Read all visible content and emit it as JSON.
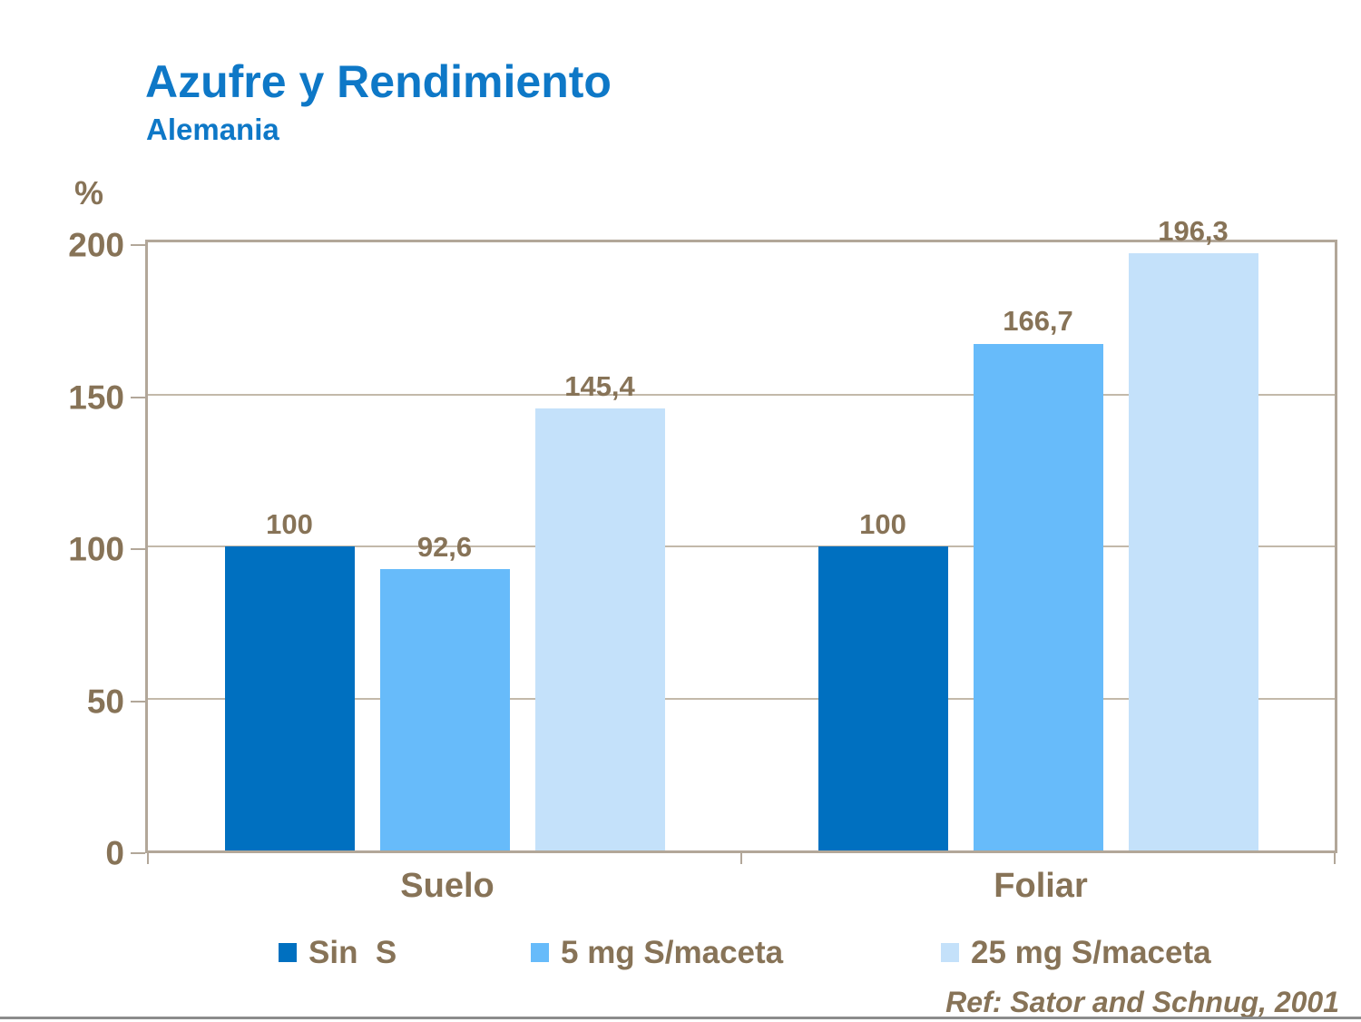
{
  "slide": {
    "title": "Azufre y Rendimiento",
    "subtitle": "Alemania",
    "reference": "Ref: Sator and Schnug, 2001"
  },
  "colors": {
    "title_blue": "#0E78C7",
    "text_brown": "#877357",
    "frame_taupe": "#B2A799",
    "gridline": "#C3B9AA",
    "bottom_rule_gray": "#8C8C8C"
  },
  "chart_data": {
    "type": "bar",
    "title": "Azufre y Rendimiento",
    "subtitle": "Alemania",
    "unit_label": "%",
    "categories": [
      "Suelo",
      "Foliar"
    ],
    "series": [
      {
        "name": "Sin  S",
        "color": "#0070C0",
        "values": [
          100,
          100
        ],
        "value_labels": [
          "100",
          "100"
        ]
      },
      {
        "name": "5 mg S/maceta",
        "color": "#67BBFA",
        "values": [
          92.6,
          166.7
        ],
        "value_labels": [
          "92,6",
          "166,7"
        ]
      },
      {
        "name": "25 mg S/maceta",
        "color": "#C4E1FA",
        "values": [
          145.4,
          196.3
        ],
        "value_labels": [
          "145,4",
          "196,3"
        ]
      }
    ],
    "ylabel": "%",
    "ylim": [
      0,
      200
    ],
    "yticks": [
      0,
      50,
      100,
      150,
      200
    ],
    "grid": true,
    "legend_position": "bottom"
  }
}
